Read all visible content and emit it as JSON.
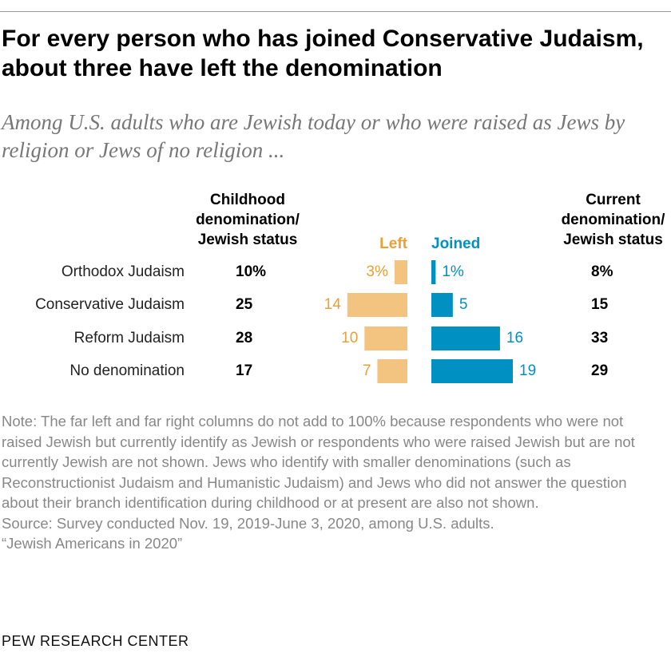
{
  "title": "For every person who has joined Conservative Judaism, about three have left the denomination",
  "subtitle": "Among U.S. adults who are Jewish today or who were raised as Jews by religion or Jews of no religion ...",
  "note": "Note: The far left and far right columns do not add to 100% because respondents who were not raised Jewish but currently identify as Jewish or respondents who were raised Jewish but are not currently Jewish are not shown. Jews who identify with smaller denominations (such as Reconstructionist Judaism and Humanistic Judaism) and Jews who did not answer the question about their branch identification during childhood or at present are also not shown.",
  "source": "Source: Survey conducted Nov. 19, 2019-June 3, 2020, among U.S. adults.",
  "report": "“Jewish Americans in 2020”",
  "logo": "PEW RESEARCH CENTER",
  "colors": {
    "left": "#F3C47F",
    "left_text": "#E9A035",
    "joined": "#0091C2",
    "joined_text": "#0091C2"
  },
  "chart_data": {
    "type": "bar",
    "columns": {
      "childhood": "Childhood denomination/ Jewish status",
      "left": "Left",
      "joined": "Joined",
      "current": "Current denomination/ Jewish status"
    },
    "categories": [
      "Orthodox Judaism",
      "Conservative Judaism",
      "Reform Judaism",
      "No denomination"
    ],
    "childhood": [
      "10%",
      "25",
      "28",
      "17"
    ],
    "current": [
      "8%",
      "15",
      "33",
      "29"
    ],
    "series": [
      {
        "name": "Left",
        "values": [
          3,
          14,
          10,
          7
        ],
        "labels": [
          "3%",
          "14",
          "10",
          "7"
        ]
      },
      {
        "name": "Joined",
        "values": [
          1,
          5,
          16,
          19
        ],
        "labels": [
          "1%",
          "5",
          "16",
          "19"
        ]
      }
    ]
  }
}
